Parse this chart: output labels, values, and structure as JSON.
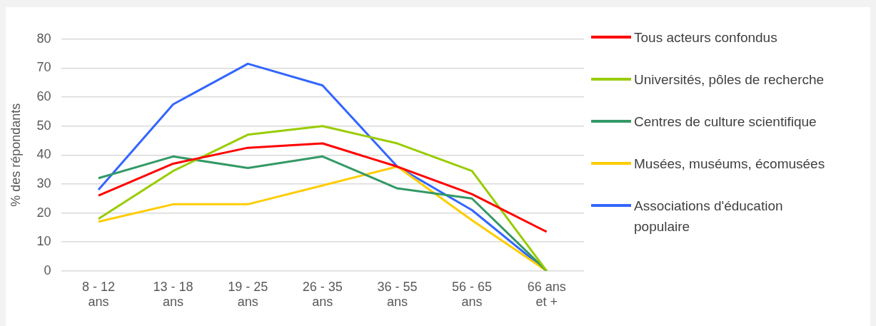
{
  "chart_data": {
    "type": "line",
    "ylabel": "% des répondants",
    "categories": [
      "8 - 12 ans",
      "13 - 18 ans",
      "19 - 25 ans",
      "26 - 35 ans",
      "36 - 55 ans",
      "56 - 65 ans",
      "66 ans et +"
    ],
    "series": [
      {
        "name": "Tous acteurs confondus",
        "color": "#ff0000",
        "values": [
          26,
          37,
          42.5,
          44,
          36,
          26.5,
          13.5
        ]
      },
      {
        "name": "Universités, pôles de recherche",
        "color": "#99cc00",
        "values": [
          18,
          34.5,
          47,
          50,
          44,
          34.5,
          0
        ]
      },
      {
        "name": "Centres de culture scientifique",
        "color": "#339966",
        "values": [
          32,
          39.5,
          35.5,
          39.5,
          28.5,
          25,
          0
        ]
      },
      {
        "name": "Musées, muséums, écomusées",
        "color": "#ffcc00",
        "values": [
          17,
          23,
          23,
          29.5,
          36,
          17.5,
          0
        ]
      },
      {
        "name": "Associations d'éducation populaire",
        "color": "#3366ff",
        "values": [
          28,
          57.5,
          71.5,
          64,
          36,
          21,
          0
        ]
      }
    ],
    "ylim": [
      0,
      80
    ],
    "yticks": [
      0,
      10,
      20,
      30,
      40,
      50,
      60,
      70,
      80
    ],
    "grid": "y",
    "legend": "right",
    "marker": "none",
    "line_style": "solid"
  }
}
